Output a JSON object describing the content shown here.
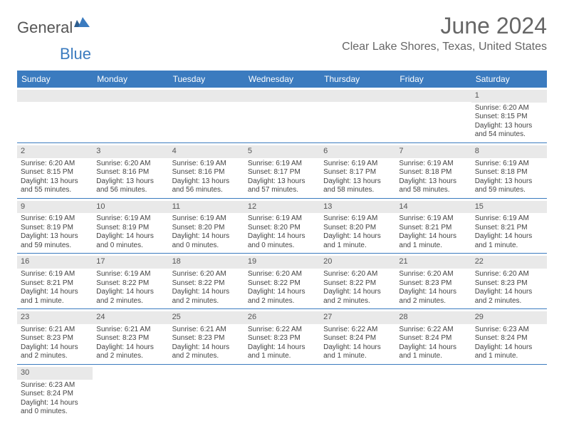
{
  "logo": {
    "text1": "General",
    "text2": "Blue"
  },
  "title": "June 2024",
  "location": "Clear Lake Shores, Texas, United States",
  "dow": [
    "Sunday",
    "Monday",
    "Tuesday",
    "Wednesday",
    "Thursday",
    "Friday",
    "Saturday"
  ],
  "colors": {
    "header_bg": "#3b7bbf",
    "daynum_bg": "#e9e9e9",
    "border": "#3b7bbf"
  },
  "days": {
    "1": {
      "sunrise": "6:20 AM",
      "sunset": "8:15 PM",
      "daylight": "13 hours and 54 minutes."
    },
    "2": {
      "sunrise": "6:20 AM",
      "sunset": "8:15 PM",
      "daylight": "13 hours and 55 minutes."
    },
    "3": {
      "sunrise": "6:20 AM",
      "sunset": "8:16 PM",
      "daylight": "13 hours and 56 minutes."
    },
    "4": {
      "sunrise": "6:19 AM",
      "sunset": "8:16 PM",
      "daylight": "13 hours and 56 minutes."
    },
    "5": {
      "sunrise": "6:19 AM",
      "sunset": "8:17 PM",
      "daylight": "13 hours and 57 minutes."
    },
    "6": {
      "sunrise": "6:19 AM",
      "sunset": "8:17 PM",
      "daylight": "13 hours and 58 minutes."
    },
    "7": {
      "sunrise": "6:19 AM",
      "sunset": "8:18 PM",
      "daylight": "13 hours and 58 minutes."
    },
    "8": {
      "sunrise": "6:19 AM",
      "sunset": "8:18 PM",
      "daylight": "13 hours and 59 minutes."
    },
    "9": {
      "sunrise": "6:19 AM",
      "sunset": "8:19 PM",
      "daylight": "13 hours and 59 minutes."
    },
    "10": {
      "sunrise": "6:19 AM",
      "sunset": "8:19 PM",
      "daylight": "14 hours and 0 minutes."
    },
    "11": {
      "sunrise": "6:19 AM",
      "sunset": "8:20 PM",
      "daylight": "14 hours and 0 minutes."
    },
    "12": {
      "sunrise": "6:19 AM",
      "sunset": "8:20 PM",
      "daylight": "14 hours and 0 minutes."
    },
    "13": {
      "sunrise": "6:19 AM",
      "sunset": "8:20 PM",
      "daylight": "14 hours and 1 minute."
    },
    "14": {
      "sunrise": "6:19 AM",
      "sunset": "8:21 PM",
      "daylight": "14 hours and 1 minute."
    },
    "15": {
      "sunrise": "6:19 AM",
      "sunset": "8:21 PM",
      "daylight": "14 hours and 1 minute."
    },
    "16": {
      "sunrise": "6:19 AM",
      "sunset": "8:21 PM",
      "daylight": "14 hours and 1 minute."
    },
    "17": {
      "sunrise": "6:19 AM",
      "sunset": "8:22 PM",
      "daylight": "14 hours and 2 minutes."
    },
    "18": {
      "sunrise": "6:20 AM",
      "sunset": "8:22 PM",
      "daylight": "14 hours and 2 minutes."
    },
    "19": {
      "sunrise": "6:20 AM",
      "sunset": "8:22 PM",
      "daylight": "14 hours and 2 minutes."
    },
    "20": {
      "sunrise": "6:20 AM",
      "sunset": "8:22 PM",
      "daylight": "14 hours and 2 minutes."
    },
    "21": {
      "sunrise": "6:20 AM",
      "sunset": "8:23 PM",
      "daylight": "14 hours and 2 minutes."
    },
    "22": {
      "sunrise": "6:20 AM",
      "sunset": "8:23 PM",
      "daylight": "14 hours and 2 minutes."
    },
    "23": {
      "sunrise": "6:21 AM",
      "sunset": "8:23 PM",
      "daylight": "14 hours and 2 minutes."
    },
    "24": {
      "sunrise": "6:21 AM",
      "sunset": "8:23 PM",
      "daylight": "14 hours and 2 minutes."
    },
    "25": {
      "sunrise": "6:21 AM",
      "sunset": "8:23 PM",
      "daylight": "14 hours and 2 minutes."
    },
    "26": {
      "sunrise": "6:22 AM",
      "sunset": "8:23 PM",
      "daylight": "14 hours and 1 minute."
    },
    "27": {
      "sunrise": "6:22 AM",
      "sunset": "8:24 PM",
      "daylight": "14 hours and 1 minute."
    },
    "28": {
      "sunrise": "6:22 AM",
      "sunset": "8:24 PM",
      "daylight": "14 hours and 1 minute."
    },
    "29": {
      "sunrise": "6:23 AM",
      "sunset": "8:24 PM",
      "daylight": "14 hours and 1 minute."
    },
    "30": {
      "sunrise": "6:23 AM",
      "sunset": "8:24 PM",
      "daylight": "14 hours and 0 minutes."
    }
  },
  "labels": {
    "sunrise": "Sunrise: ",
    "sunset": "Sunset: ",
    "daylight": "Daylight: "
  },
  "grid": [
    [
      0,
      0,
      0,
      0,
      0,
      0,
      1
    ],
    [
      2,
      3,
      4,
      5,
      6,
      7,
      8
    ],
    [
      9,
      10,
      11,
      12,
      13,
      14,
      15
    ],
    [
      16,
      17,
      18,
      19,
      20,
      21,
      22
    ],
    [
      23,
      24,
      25,
      26,
      27,
      28,
      29
    ],
    [
      30,
      0,
      0,
      0,
      0,
      0,
      0
    ]
  ]
}
